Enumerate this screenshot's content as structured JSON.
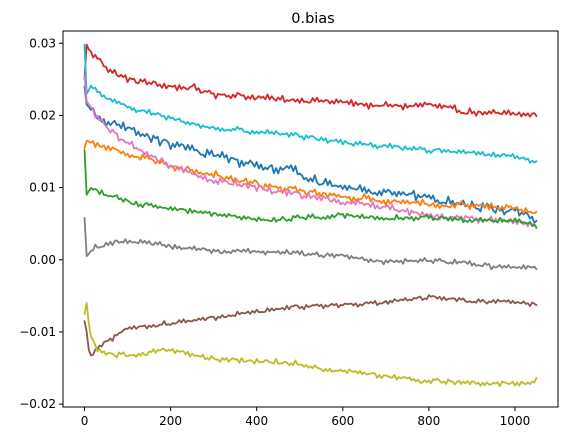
{
  "chart_data": {
    "type": "line",
    "title": "0.bias",
    "xlabel": "",
    "ylabel": "",
    "xlim": [
      -50,
      1100
    ],
    "ylim": [
      -0.0204,
      0.0317
    ],
    "grid": false,
    "legend": "none",
    "x_ticks": [
      0,
      200,
      400,
      600,
      800,
      1000
    ],
    "x_tick_labels": [
      "0",
      "200",
      "400",
      "600",
      "800",
      "1000"
    ],
    "y_ticks": [
      -0.02,
      -0.01,
      0.0,
      0.01,
      0.02,
      0.03
    ],
    "y_tick_labels": [
      "−0.02",
      "−0.01",
      "0.00",
      "0.01",
      "0.02",
      "0.03"
    ],
    "series": [
      {
        "color": "#d62728",
        "noise": 0.00045,
        "points": [
          [
            0,
            0.025
          ],
          [
            5,
            0.0298
          ],
          [
            15,
            0.0285
          ],
          [
            30,
            0.028
          ],
          [
            60,
            0.0262
          ],
          [
            100,
            0.025
          ],
          [
            150,
            0.0245
          ],
          [
            200,
            0.024
          ],
          [
            250,
            0.0238
          ],
          [
            300,
            0.023
          ],
          [
            350,
            0.0228
          ],
          [
            400,
            0.0225
          ],
          [
            450,
            0.0222
          ],
          [
            500,
            0.0222
          ],
          [
            550,
            0.022
          ],
          [
            600,
            0.0218
          ],
          [
            650,
            0.0215
          ],
          [
            700,
            0.0213
          ],
          [
            750,
            0.0213
          ],
          [
            800,
            0.0215
          ],
          [
            850,
            0.0208
          ],
          [
            900,
            0.0205
          ],
          [
            950,
            0.0202
          ],
          [
            1000,
            0.0202
          ],
          [
            1050,
            0.02
          ]
        ]
      },
      {
        "color": "#17becf",
        "noise": 0.00035,
        "points": [
          [
            0,
            0.0298
          ],
          [
            5,
            0.023
          ],
          [
            15,
            0.024
          ],
          [
            40,
            0.0228
          ],
          [
            80,
            0.0215
          ],
          [
            150,
            0.0205
          ],
          [
            200,
            0.0195
          ],
          [
            300,
            0.0182
          ],
          [
            400,
            0.0178
          ],
          [
            500,
            0.0172
          ],
          [
            600,
            0.0163
          ],
          [
            700,
            0.0158
          ],
          [
            800,
            0.0152
          ],
          [
            900,
            0.0148
          ],
          [
            1000,
            0.0142
          ],
          [
            1050,
            0.0135
          ]
        ]
      },
      {
        "color": "#1f77b4",
        "noise": 0.0006,
        "points": [
          [
            0,
            0.024
          ],
          [
            5,
            0.0215
          ],
          [
            30,
            0.0198
          ],
          [
            80,
            0.0185
          ],
          [
            150,
            0.017
          ],
          [
            200,
            0.016
          ],
          [
            300,
            0.0145
          ],
          [
            400,
            0.0132
          ],
          [
            480,
            0.0125
          ],
          [
            520,
            0.0112
          ],
          [
            600,
            0.01
          ],
          [
            700,
            0.0095
          ],
          [
            800,
            0.0085
          ],
          [
            900,
            0.0075
          ],
          [
            1000,
            0.0068
          ],
          [
            1050,
            0.0055
          ]
        ]
      },
      {
        "color": "#ff7f0e",
        "noise": 0.00045,
        "points": [
          [
            0,
            0.0155
          ],
          [
            5,
            0.0165
          ],
          [
            30,
            0.016
          ],
          [
            80,
            0.015
          ],
          [
            150,
            0.014
          ],
          [
            200,
            0.013
          ],
          [
            300,
            0.0118
          ],
          [
            400,
            0.0105
          ],
          [
            500,
            0.0095
          ],
          [
            600,
            0.0088
          ],
          [
            700,
            0.0082
          ],
          [
            800,
            0.0078
          ],
          [
            900,
            0.0075
          ],
          [
            1000,
            0.0073
          ],
          [
            1050,
            0.0068
          ]
        ]
      },
      {
        "color": "#e377c2",
        "noise": 0.00045,
        "points": [
          [
            0,
            0.0255
          ],
          [
            5,
            0.022
          ],
          [
            30,
            0.0195
          ],
          [
            80,
            0.017
          ],
          [
            150,
            0.0145
          ],
          [
            200,
            0.013
          ],
          [
            300,
            0.011
          ],
          [
            400,
            0.01
          ],
          [
            500,
            0.009
          ],
          [
            600,
            0.008
          ],
          [
            700,
            0.0073
          ],
          [
            800,
            0.0062
          ],
          [
            900,
            0.0058
          ],
          [
            1000,
            0.0052
          ],
          [
            1050,
            0.0048
          ]
        ]
      },
      {
        "color": "#2ca02c",
        "noise": 0.00035,
        "points": [
          [
            0,
            0.0152
          ],
          [
            5,
            0.009
          ],
          [
            15,
            0.01
          ],
          [
            50,
            0.009
          ],
          [
            100,
            0.008
          ],
          [
            200,
            0.007
          ],
          [
            300,
            0.0063
          ],
          [
            400,
            0.0055
          ],
          [
            500,
            0.0058
          ],
          [
            600,
            0.0062
          ],
          [
            700,
            0.0058
          ],
          [
            800,
            0.0058
          ],
          [
            900,
            0.0055
          ],
          [
            1000,
            0.0055
          ],
          [
            1050,
            0.0048
          ]
        ]
      },
      {
        "color": "#7f7f7f",
        "noise": 0.00035,
        "points": [
          [
            0,
            0.0058
          ],
          [
            5,
            0.0005
          ],
          [
            20,
            0.0015
          ],
          [
            60,
            0.0025
          ],
          [
            100,
            0.0025
          ],
          [
            200,
            0.0018
          ],
          [
            300,
            0.0012
          ],
          [
            400,
            0.0012
          ],
          [
            500,
            0.0008
          ],
          [
            600,
            0.0005
          ],
          [
            700,
            -0.0002
          ],
          [
            800,
            0.0
          ],
          [
            900,
            -0.0005
          ],
          [
            1000,
            -0.0012
          ],
          [
            1050,
            -0.001
          ]
        ]
      },
      {
        "color": "#8c564b",
        "noise": 0.0003,
        "points": [
          [
            0,
            -0.0085
          ],
          [
            5,
            -0.01
          ],
          [
            12,
            -0.0135
          ],
          [
            30,
            -0.012
          ],
          [
            60,
            -0.011
          ],
          [
            100,
            -0.0095
          ],
          [
            200,
            -0.0088
          ],
          [
            300,
            -0.008
          ],
          [
            400,
            -0.0072
          ],
          [
            500,
            -0.0065
          ],
          [
            600,
            -0.0062
          ],
          [
            700,
            -0.0058
          ],
          [
            800,
            -0.0052
          ],
          [
            900,
            -0.0058
          ],
          [
            1000,
            -0.0058
          ],
          [
            1050,
            -0.0062
          ]
        ]
      },
      {
        "color": "#bcbd22",
        "noise": 0.00035,
        "points": [
          [
            0,
            -0.0075
          ],
          [
            5,
            -0.006
          ],
          [
            12,
            -0.01
          ],
          [
            30,
            -0.0125
          ],
          [
            60,
            -0.013
          ],
          [
            100,
            -0.0132
          ],
          [
            200,
            -0.0125
          ],
          [
            300,
            -0.0138
          ],
          [
            400,
            -0.014
          ],
          [
            500,
            -0.0145
          ],
          [
            600,
            -0.0155
          ],
          [
            700,
            -0.016
          ],
          [
            800,
            -0.0168
          ],
          [
            900,
            -0.017
          ],
          [
            1000,
            -0.0172
          ],
          [
            1050,
            -0.0168
          ]
        ]
      }
    ]
  }
}
